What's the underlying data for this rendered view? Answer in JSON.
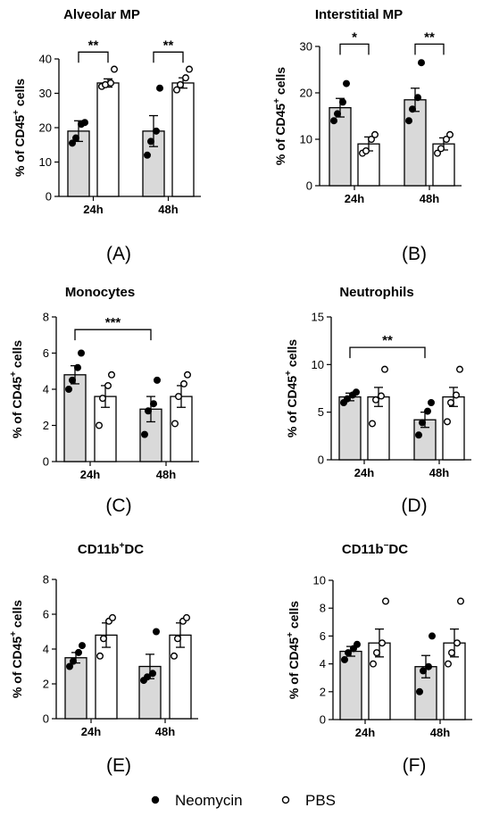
{
  "chart_data": [
    {
      "type": "bar",
      "panel": "(A)",
      "title": "Alveolar MP",
      "ylabel": "% of CD45+ cells",
      "ylim": [
        0,
        40
      ],
      "yticks": [
        0,
        10,
        20,
        30,
        40
      ],
      "categories": [
        "24h",
        "48h"
      ],
      "series": [
        {
          "name": "Neomycin",
          "values": [
            19,
            19
          ],
          "sem": [
            3,
            4.5
          ],
          "points": [
            [
              15.5,
              17,
              21,
              21.5
            ],
            [
              12,
              16,
              19,
              31.5
            ]
          ]
        },
        {
          "name": "PBS",
          "values": [
            33,
            33
          ],
          "sem": [
            1.2,
            1.5
          ],
          "points": [
            [
              32,
              32.5,
              33,
              37
            ],
            [
              31,
              32.5,
              34.5,
              37
            ]
          ]
        }
      ],
      "significance": [
        {
          "label": "**",
          "from": [
            0,
            0
          ],
          "to": [
            0,
            1
          ],
          "y": 42
        },
        {
          "label": "**",
          "from": [
            1,
            0
          ],
          "to": [
            1,
            1
          ],
          "y": 42
        }
      ]
    },
    {
      "type": "bar",
      "panel": "(B)",
      "title": "Interstitial MP",
      "ylabel": "% of CD45+ cells",
      "ylim": [
        0,
        30
      ],
      "yticks": [
        0,
        10,
        20,
        30
      ],
      "categories": [
        "24h",
        "48h"
      ],
      "series": [
        {
          "name": "Neomycin",
          "values": [
            16.8,
            18.5
          ],
          "sem": [
            2,
            2.5
          ],
          "points": [
            [
              14,
              15.5,
              18,
              22
            ],
            [
              14,
              16.5,
              19,
              26.5
            ]
          ]
        },
        {
          "name": "PBS",
          "values": [
            9,
            9
          ],
          "sem": [
            1.5,
            1.3
          ],
          "points": [
            [
              7,
              7.5,
              10,
              11
            ],
            [
              7,
              8,
              10,
              11
            ]
          ]
        }
      ],
      "significance": [
        {
          "label": "*",
          "from": [
            0,
            0
          ],
          "to": [
            0,
            1
          ],
          "y": 30.5
        },
        {
          "label": "**",
          "from": [
            1,
            0
          ],
          "to": [
            1,
            1
          ],
          "y": 30.5
        }
      ]
    },
    {
      "type": "bar",
      "panel": "(C)",
      "title": "Monocytes",
      "ylabel": "% of CD45+ cells",
      "ylim": [
        0,
        8
      ],
      "yticks": [
        0,
        2,
        4,
        6,
        8
      ],
      "categories": [
        "24h",
        "48h"
      ],
      "series": [
        {
          "name": "Neomycin",
          "values": [
            4.8,
            2.9
          ],
          "sem": [
            0.5,
            0.7
          ],
          "points": [
            [
              4,
              4.5,
              5.2,
              6
            ],
            [
              1.5,
              2.8,
              3.2,
              4.5
            ]
          ]
        },
        {
          "name": "PBS",
          "values": [
            3.6,
            3.6
          ],
          "sem": [
            0.6,
            0.6
          ],
          "points": [
            [
              2,
              3.5,
              4.2,
              4.8
            ],
            [
              2.1,
              3.6,
              4.3,
              4.8
            ]
          ]
        }
      ],
      "significance": [
        {
          "label": "***",
          "from": [
            0,
            0
          ],
          "to": [
            1,
            0
          ],
          "y": 7.3
        }
      ]
    },
    {
      "type": "bar",
      "panel": "(D)",
      "title": "Neutrophils",
      "ylabel": "% of CD45+ cells",
      "ylim": [
        0,
        15
      ],
      "yticks": [
        0,
        5,
        10,
        15
      ],
      "categories": [
        "24h",
        "48h"
      ],
      "series": [
        {
          "name": "Neomycin",
          "values": [
            6.6,
            4.2
          ],
          "sem": [
            0.4,
            0.8
          ],
          "points": [
            [
              6,
              6.4,
              6.8,
              7.1
            ],
            [
              2.6,
              3.9,
              5.1,
              6
            ]
          ]
        },
        {
          "name": "PBS",
          "values": [
            6.6,
            6.6
          ],
          "sem": [
            1,
            1
          ],
          "points": [
            [
              3.8,
              6.3,
              6.7,
              9.5
            ],
            [
              4,
              6,
              6.8,
              9.5
            ]
          ]
        }
      ],
      "significance": [
        {
          "label": "**",
          "from": [
            0,
            0
          ],
          "to": [
            1,
            0
          ],
          "y": 11.8
        }
      ]
    },
    {
      "type": "bar",
      "panel": "(E)",
      "title": "CD11b+DC",
      "ylabel": "% of CD45+ cells",
      "ylim": [
        0,
        8
      ],
      "yticks": [
        0,
        2,
        4,
        6,
        8
      ],
      "categories": [
        "24h",
        "48h"
      ],
      "series": [
        {
          "name": "Neomycin",
          "values": [
            3.5,
            3
          ],
          "sem": [
            0.3,
            0.7
          ],
          "points": [
            [
              3,
              3.3,
              3.8,
              4.2
            ],
            [
              2.2,
              2.4,
              2.6,
              5
            ]
          ]
        },
        {
          "name": "PBS",
          "values": [
            4.8,
            4.8
          ],
          "sem": [
            0.7,
            0.7
          ],
          "points": [
            [
              3.6,
              4.6,
              5.6,
              5.8
            ],
            [
              3.6,
              4.6,
              5.6,
              5.8
            ]
          ]
        }
      ],
      "significance": []
    },
    {
      "type": "bar",
      "panel": "(F)",
      "title": "CD11b−DC",
      "ylabel": "% of CD45+ cells",
      "ylim": [
        0,
        10
      ],
      "yticks": [
        0,
        2,
        4,
        6,
        8,
        10
      ],
      "categories": [
        "24h",
        "48h"
      ],
      "series": [
        {
          "name": "Neomycin",
          "values": [
            4.9,
            3.8
          ],
          "sem": [
            0.35,
            0.8
          ],
          "points": [
            [
              4.3,
              4.8,
              5.1,
              5.4
            ],
            [
              2,
              3.5,
              3.8,
              6
            ]
          ]
        },
        {
          "name": "PBS",
          "values": [
            5.5,
            5.5
          ],
          "sem": [
            1,
            1
          ],
          "points": [
            [
              4,
              4.8,
              5.5,
              8.5
            ],
            [
              4,
              4.8,
              5.5,
              8.5
            ]
          ]
        }
      ],
      "significance": []
    }
  ],
  "legend": {
    "items": [
      "Neomycin",
      "PBS"
    ]
  }
}
